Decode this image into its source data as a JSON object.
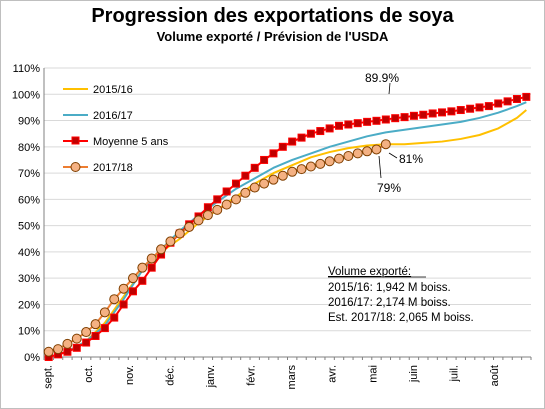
{
  "chart_data": {
    "type": "line",
    "title": "Progression des exportations de soya",
    "subtitle": "Volume exporté / Prévision de l'USDA",
    "xlabel": "",
    "ylabel": "",
    "ylim": [
      0,
      110
    ],
    "y_ticks": [
      "0%",
      "10%",
      "20%",
      "30%",
      "40%",
      "50%",
      "60%",
      "70%",
      "80%",
      "90%",
      "100%",
      "110%"
    ],
    "x_ticks": [
      "sept.",
      "oct.",
      "nov.",
      "déc.",
      "janv.",
      "févr.",
      "mars",
      "avr.",
      "mai",
      "juin",
      "juil.",
      "août"
    ],
    "grid": true,
    "legend_position": "top-left",
    "series": [
      {
        "name": "2015/16",
        "color": "#FFC000",
        "marker": "none",
        "x": [
          0,
          2,
          4,
          6,
          8,
          10,
          12,
          14,
          16,
          18,
          20,
          22,
          24,
          26,
          28,
          30,
          32,
          34,
          36,
          38,
          40,
          42,
          44,
          46,
          48,
          50,
          51
        ],
        "values": [
          0,
          2,
          6,
          13,
          23,
          33,
          40,
          45,
          51,
          56,
          61,
          66,
          70,
          73,
          76,
          78,
          79.5,
          80.5,
          81,
          81,
          81.5,
          82,
          83,
          84.5,
          87,
          91,
          94
        ]
      },
      {
        "name": "2016/17",
        "color": "#4BACC6",
        "marker": "none",
        "x": [
          0,
          2,
          4,
          6,
          8,
          10,
          12,
          14,
          16,
          18,
          20,
          22,
          24,
          26,
          28,
          30,
          32,
          34,
          36,
          38,
          40,
          42,
          44,
          46,
          48,
          50,
          51
        ],
        "values": [
          0,
          2,
          6,
          12,
          22,
          33,
          41,
          48,
          54,
          59,
          64,
          68,
          72,
          75,
          77.5,
          80,
          82,
          84,
          85.5,
          86.5,
          87.5,
          88.5,
          89.5,
          91,
          93,
          95.5,
          97
        ]
      },
      {
        "name": "Moyenne 5 ans",
        "color": "#FF0000",
        "marker": "square",
        "marker_fill": "#C00000",
        "x": [
          0,
          1,
          2,
          3,
          4,
          5,
          6,
          7,
          8,
          9,
          10,
          11,
          12,
          13,
          14,
          15,
          16,
          17,
          18,
          19,
          20,
          21,
          22,
          23,
          24,
          25,
          26,
          27,
          28,
          29,
          30,
          31,
          32,
          33,
          34,
          35,
          36,
          37,
          38,
          39,
          40,
          41,
          42,
          43,
          44,
          45,
          46,
          47,
          48,
          49,
          50,
          51
        ],
        "values": [
          0,
          1,
          2,
          3.5,
          5.5,
          8,
          11,
          15,
          20,
          25,
          29,
          34,
          39,
          43.5,
          47,
          50.5,
          53.5,
          57,
          60,
          63,
          66,
          69,
          72,
          75,
          77.5,
          80,
          82,
          83.5,
          85,
          86,
          87,
          88,
          88.5,
          89,
          89.5,
          89.9,
          90.4,
          90.9,
          91.3,
          91.8,
          92.2,
          92.7,
          93.1,
          93.5,
          94,
          94.5,
          95,
          95.5,
          96.5,
          97.3,
          98.2,
          99
        ]
      },
      {
        "name": "2017/18",
        "color": "#ED7D31",
        "marker": "circle",
        "marker_fill": "#F4B183",
        "x": [
          0,
          1,
          2,
          3,
          4,
          5,
          6,
          7,
          8,
          9,
          10,
          11,
          12,
          13,
          14,
          15,
          16,
          17,
          18,
          19,
          20,
          21,
          22,
          23,
          24,
          25,
          26,
          27,
          28,
          29,
          30,
          31,
          32,
          33,
          34,
          35,
          36
        ],
        "values": [
          2,
          3,
          5,
          7,
          9.5,
          12.5,
          17,
          22,
          26,
          30,
          34,
          37.5,
          41,
          44,
          47,
          49.5,
          52,
          54,
          56,
          58,
          60,
          62.5,
          64.5,
          66,
          67.5,
          69,
          70.5,
          71.5,
          72.5,
          73.5,
          74.5,
          75.5,
          76.5,
          77.5,
          78.3,
          79,
          81
        ]
      }
    ],
    "annotations": [
      "89.9%",
      "81%",
      "79%"
    ],
    "notes": {
      "heading": "Volume exporté:",
      "lines": [
        "2015/16: 1,942 M boiss.",
        "2016/17: 2,174 M boiss.",
        "Est. 2017/18: 2,065 M boiss."
      ]
    }
  }
}
